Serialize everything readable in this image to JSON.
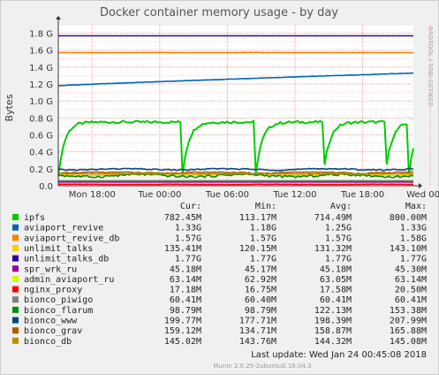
{
  "chart_data": {
    "type": "line",
    "title": "Docker container memory usage - by day",
    "ylabel": "Bytes",
    "ylim": [
      0,
      1.9
    ],
    "yticks": [
      {
        "v": 0.0,
        "label": "0.0"
      },
      {
        "v": 0.2,
        "label": "0.2 G"
      },
      {
        "v": 0.4,
        "label": "0.4 G"
      },
      {
        "v": 0.6,
        "label": "0.6 G"
      },
      {
        "v": 0.8,
        "label": "0.8 G"
      },
      {
        "v": 1.0,
        "label": "1.0 G"
      },
      {
        "v": 1.2,
        "label": "1.2 G"
      },
      {
        "v": 1.4,
        "label": "1.4 G"
      },
      {
        "v": 1.6,
        "label": "1.6 G"
      },
      {
        "v": 1.8,
        "label": "1.8 G"
      }
    ],
    "xlim": [
      0,
      31.5
    ],
    "xticks": [
      {
        "h": 3,
        "label": "Mon 18:00"
      },
      {
        "h": 9,
        "label": "Tue 00:00"
      },
      {
        "h": 15,
        "label": "Tue 06:00"
      },
      {
        "h": 21,
        "label": "Tue 12:00"
      },
      {
        "h": 27,
        "label": "Tue 18:00"
      },
      {
        "h": 33,
        "label": "Wed 00:00"
      }
    ],
    "grid": true,
    "side_label": "RRDTOOL / TOBI OETIKER",
    "legend_headers": {
      "cur": "Cur:",
      "min": "Min:",
      "avg": "Avg:",
      "max": "Max:"
    },
    "series": [
      {
        "name": "ipfs",
        "color": "#00cc00",
        "cur": "782.45M",
        "min": "113.17M",
        "avg": "714.49M",
        "max": "800.00M"
      },
      {
        "name": "aviaport_revive",
        "color": "#0066b3",
        "cur": "1.33G",
        "min": "1.18G",
        "avg": "1.25G",
        "max": "1.33G"
      },
      {
        "name": "aviaport_revive_db",
        "color": "#ff8000",
        "cur": "1.57G",
        "min": "1.57G",
        "avg": "1.57G",
        "max": "1.58G"
      },
      {
        "name": "unlimit_talks",
        "color": "#ffcc00",
        "cur": "135.41M",
        "min": "120.15M",
        "avg": "131.32M",
        "max": "143.10M"
      },
      {
        "name": "unlimit_talks_db",
        "color": "#330099",
        "cur": "1.77G",
        "min": "1.77G",
        "avg": "1.77G",
        "max": "1.77G"
      },
      {
        "name": "spr_wrk_ru",
        "color": "#990099",
        "cur": "45.18M",
        "min": "45.17M",
        "avg": "45.18M",
        "max": "45.30M"
      },
      {
        "name": "admin_aviaport_ru",
        "color": "#ccff00",
        "cur": "63.14M",
        "min": "62.92M",
        "avg": "63.05M",
        "max": "63.14M"
      },
      {
        "name": "nginx_proxy",
        "color": "#ff0000",
        "cur": "17.18M",
        "min": "16.75M",
        "avg": "17.58M",
        "max": "20.50M"
      },
      {
        "name": "bionco_piwigo",
        "color": "#808080",
        "cur": "60.41M",
        "min": "60.40M",
        "avg": "60.41M",
        "max": "60.41M"
      },
      {
        "name": "bionco_flarum",
        "color": "#008f00",
        "cur": "98.79M",
        "min": "98.79M",
        "avg": "122.13M",
        "max": "153.38M"
      },
      {
        "name": "bionco_www",
        "color": "#00487d",
        "cur": "199.77M",
        "min": "177.71M",
        "avg": "198.39M",
        "max": "207.99M"
      },
      {
        "name": "bionco_grav",
        "color": "#b35a00",
        "cur": "159.12M",
        "min": "134.71M",
        "avg": "158.87M",
        "max": "165.88M"
      },
      {
        "name": "bionco_db",
        "color": "#b38f00",
        "cur": "145.02M",
        "min": "143.76M",
        "avg": "144.32M",
        "max": "145.08M"
      }
    ],
    "last_update": "Last update: Wed Jan 24 00:45:08 2018",
    "footer": "Munin 2.0.25-2ubuntu0.16.04.3"
  }
}
